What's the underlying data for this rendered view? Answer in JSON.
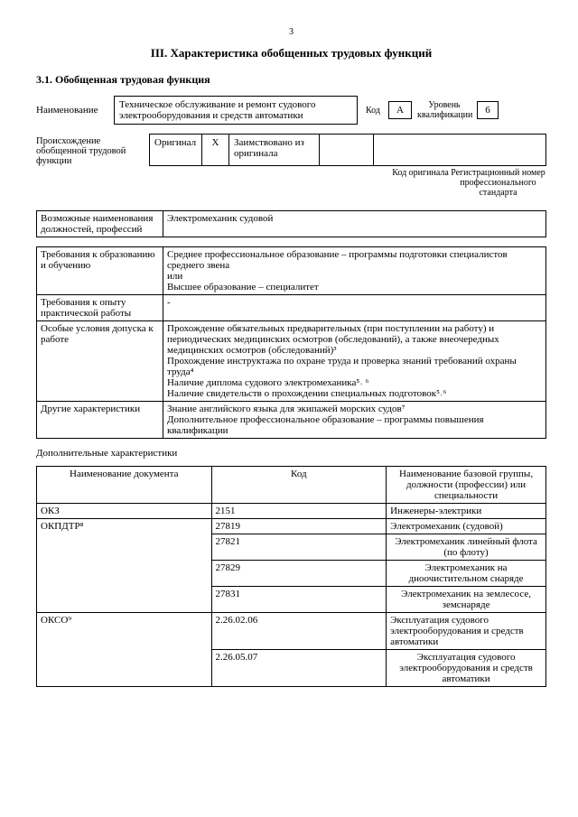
{
  "pageNumber": "3",
  "title": "III. Характеристика обобщенных трудовых функций",
  "section": "3.1. Обобщенная трудовая функция",
  "row1": {
    "nameLabel": "Наименование",
    "nameValue": "Техническое обслуживание и ремонт судового электрооборудования и средств автоматики",
    "codeLabel": "Код",
    "codeValue": "A",
    "levelLabel": "Уровень квалификации",
    "levelValue": "6"
  },
  "origin": {
    "label": "Происхождение обобщенной трудовой функции",
    "originalLabel": "Оригинал",
    "originalMark": "X",
    "borrowedLabel": "Заимствовано из оригинала",
    "codeSubLabel": "Код оригинала",
    "regSubLabel": "Регистрационный номер профессионального стандарта"
  },
  "jobTitles": {
    "label": "Возможные наименования должностей, профессий",
    "value": "Электромеханик судовой"
  },
  "req": [
    {
      "label": "Требования к образованию и обучению",
      "value": "Среднее профессиональное образование – программы подготовки специалистов среднего звена\nили\nВысшее образование – специалитет"
    },
    {
      "label": "Требования к опыту практической работы",
      "value": "-"
    },
    {
      "label": "Особые условия допуска к работе",
      "value": "Прохождение обязательных предварительных (при поступлении на работу) и периодических медицинских осмотров (обследований), а также внеочередных медицинских осмотров (обследований)³\nПрохождение инструктажа по охране труда и проверка знаний требований охраны труда⁴\nНаличие диплома судового электромеханика⁵˒ ⁶\nНаличие свидетельств о прохождении специальных подготовок⁵˒⁶"
    },
    {
      "label": "Другие характеристики",
      "value": "Знание английского языка для экипажей морских судов⁷\nДополнительное профессиональное образование – программы повышения квалификации"
    }
  ],
  "addlTitle": "Дополнительные характеристики",
  "cls": {
    "h1": "Наименование документа",
    "h2": "Код",
    "h3": "Наименование базовой группы, должности (профессии) или специальности",
    "rows": [
      {
        "doc": "ОКЗ",
        "code": "2151",
        "name": "Инженеры-электрики"
      },
      {
        "doc": "ОКПДТР⁸",
        "code": "27819",
        "name": "Электромеханик (судовой)"
      },
      {
        "doc": "",
        "code": "27821",
        "name": "Электромеханик линейный флота (по флоту)"
      },
      {
        "doc": "",
        "code": "27829",
        "name": "Электромеханик на дноочистительном снаряде"
      },
      {
        "doc": "",
        "code": "27831",
        "name": "Электромеханик на землесосе, земснаряде"
      },
      {
        "doc": "ОКСО⁹",
        "code": "2.26.02.06",
        "name": "Эксплуатация судового электрооборудования и средств автоматики"
      },
      {
        "doc": "",
        "code": "2.26.05.07",
        "name": "Эксплуатация судового электрооборудования и средств автоматики"
      }
    ]
  }
}
